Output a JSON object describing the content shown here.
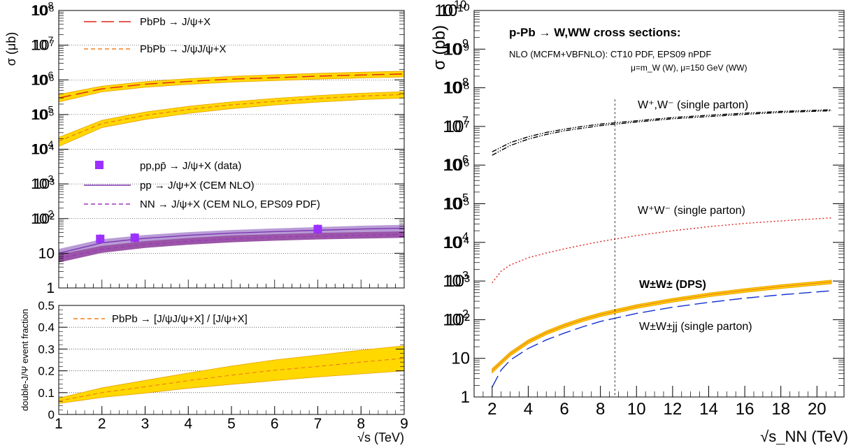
{
  "chart_data": [
    {
      "type": "line",
      "panel": "left-top",
      "ylabel": "σ (μb)",
      "yscale": "log",
      "xlim": [
        1,
        9
      ],
      "ylim": [
        1,
        100000000
      ],
      "ytick_labels": [
        "1",
        "10",
        "10²",
        "10³",
        "10⁴",
        "10⁵",
        "10⁶",
        "10⁷",
        "10⁸"
      ],
      "legend": [
        "PbPb → J/ψ+X",
        "PbPb → J/ψJ/ψ+X",
        "pp,pp̄ → J/ψ+X (data)",
        "pp → J/ψ+X (CEM NLO)",
        "NN → J/ψ+X (CEM NLO, EPS09 PDF)"
      ],
      "series": [
        {
          "name": "PbPb → J/ψ+X",
          "style": "long-dash",
          "color": "#e0221c",
          "band_color": "#ffd800",
          "x": [
            1,
            2,
            3,
            4,
            5,
            6,
            7,
            8,
            9
          ],
          "y": [
            300000,
            550000,
            750000,
            900000,
            1050000,
            1150000,
            1280000,
            1380000,
            1480000
          ],
          "band_low": [
            230000,
            450000,
            610000,
            740000,
            860000,
            950000,
            1050000,
            1130000,
            1210000
          ],
          "band_high": [
            380000,
            660000,
            890000,
            1080000,
            1260000,
            1400000,
            1540000,
            1660000,
            1780000
          ]
        },
        {
          "name": "PbPb → J/ψJ/ψ+X",
          "style": "dash",
          "color": "#f08020",
          "band_color": "#ffd800",
          "x": [
            1,
            2,
            3,
            4,
            5,
            6,
            7,
            8,
            9
          ],
          "y": [
            17000,
            55000,
            95000,
            140000,
            190000,
            240000,
            290000,
            340000,
            380000
          ],
          "band_low": [
            12000,
            42000,
            72000,
            108000,
            148000,
            188000,
            228000,
            268000,
            300000
          ],
          "band_high": [
            22000,
            68000,
            118000,
            172000,
            232000,
            292000,
            352000,
            412000,
            460000
          ]
        },
        {
          "name": "pp → J/ψ+X (CEM NLO)",
          "style": "solid",
          "color": "#7f35b2",
          "band_color": "#b89cd6",
          "x": [
            1,
            2,
            3,
            4,
            5,
            6,
            7,
            8,
            9
          ],
          "y": [
            10,
            20,
            27,
            33,
            38,
            42,
            46,
            50,
            53
          ],
          "band_low": [
            8,
            16,
            22,
            27,
            31,
            34,
            37,
            40,
            43
          ],
          "band_high": [
            13,
            25,
            33,
            40,
            46,
            51,
            56,
            61,
            65
          ]
        },
        {
          "name": "NN → J/ψ+X (CEM NLO, EPS09 PDF)",
          "style": "dash",
          "color": "#9a3cb8",
          "band_color": "#9b55a8",
          "x": [
            1,
            2,
            3,
            4,
            5,
            6,
            7,
            8,
            9
          ],
          "y": [
            7,
            13,
            18,
            22,
            26,
            29,
            31,
            33,
            35
          ],
          "band_low": [
            5.5,
            10.5,
            14.5,
            18,
            21,
            23.5,
            25.5,
            27,
            28.5
          ],
          "band_high": [
            9,
            16,
            22,
            27,
            32,
            35,
            38,
            40,
            42
          ]
        },
        {
          "name": "pp,pp̄ → J/ψ+X (data)",
          "style": "marker",
          "color": "#9b30ff",
          "x": [
            1.96,
            2.76,
            7
          ],
          "y": [
            26,
            28,
            50
          ]
        }
      ]
    },
    {
      "type": "line",
      "panel": "left-bottom",
      "xlabel": "√s (TeV)",
      "ylabel": "double-J/Ψ event fraction",
      "xlim": [
        1,
        9
      ],
      "ylim": [
        0,
        0.5
      ],
      "x_tick_labels": [
        "1",
        "2",
        "3",
        "4",
        "5",
        "6",
        "7",
        "8",
        "9"
      ],
      "y_tick_labels": [
        "0",
        "0.1",
        "0.2",
        "0.3",
        "0.4",
        "0.5"
      ],
      "legend": [
        "PbPb → [J/ψJ/ψ+X] / [J/ψ+X]"
      ],
      "series": [
        {
          "name": "PbPb → [J/ψJ/ψ+X] / [J/ψ+X]",
          "style": "dash",
          "color": "#f08020",
          "band_color": "#ffd800",
          "x": [
            1,
            2,
            3,
            4,
            5,
            6,
            7,
            8,
            9
          ],
          "y": [
            0.062,
            0.1,
            0.127,
            0.155,
            0.18,
            0.203,
            0.22,
            0.24,
            0.258
          ],
          "band_low": [
            0.05,
            0.078,
            0.098,
            0.12,
            0.138,
            0.155,
            0.172,
            0.186,
            0.2
          ],
          "band_high": [
            0.075,
            0.122,
            0.156,
            0.19,
            0.222,
            0.25,
            0.272,
            0.295,
            0.315
          ]
        }
      ]
    },
    {
      "type": "line",
      "panel": "right",
      "title": "p-Pb → W,WW cross sections:",
      "subtitle": "NLO (MCFM+VBFNLO): CT10 PDF, EPS09 nPDF",
      "subtitle2": "μ=m_W (W), μ=150 GeV (WW)",
      "xlabel": "√s_NN (TeV)",
      "ylabel": "σ (pb)",
      "yscale": "log",
      "xlim": [
        1,
        21.5
      ],
      "ylim": [
        1,
        10000000000
      ],
      "x_tick_labels": [
        "2",
        "4",
        "6",
        "8",
        "10",
        "12",
        "14",
        "16",
        "18",
        "20"
      ],
      "ytick_labels": [
        "1",
        "10",
        "10²",
        "10³",
        "10⁴",
        "10⁵",
        "10⁶",
        "10⁷",
        "10⁸",
        "10⁹",
        "10¹⁰"
      ],
      "vline_x": 8.8,
      "annotations": [
        "W⁺,W⁻ (single parton)",
        "W⁺W⁻ (single parton)",
        "W±W± (DPS)",
        "W±W±jj (single parton)"
      ],
      "series": [
        {
          "name": "W⁺,W⁻ (single parton)",
          "style": "dash-dot-dot",
          "color": "#000000",
          "x": [
            2,
            3,
            4,
            5,
            6,
            7,
            8,
            10,
            12,
            14,
            16,
            18,
            20.8
          ],
          "y": [
            2200000,
            3800000,
            5400000,
            7000000,
            8500000,
            10000000,
            11500000,
            14000000,
            17000000,
            19500000,
            22000000,
            24500000,
            27000000
          ]
        },
        {
          "name": "W⁺,W⁻ lower",
          "style": "dash-dot-dot",
          "color": "#000000",
          "x": [
            2,
            3,
            4,
            5,
            6,
            7,
            8,
            10,
            12,
            14,
            16,
            18,
            20.8
          ],
          "y": [
            1800000,
            3200000,
            4700000,
            6200000,
            7700000,
            9000000,
            10500000,
            13000000,
            15800000,
            18000000,
            20500000,
            23000000,
            25500000
          ]
        },
        {
          "name": "W⁺W⁻ (single parton)",
          "style": "dot",
          "color": "#e0221c",
          "x": [
            2,
            2.5,
            3,
            4,
            5,
            6,
            7,
            8,
            10,
            12,
            14,
            16,
            18,
            20.8
          ],
          "y": [
            900,
            1800,
            2600,
            4000,
            5300,
            6800,
            8500,
            10500,
            15000,
            20000,
            25500,
            31000,
            36000,
            43000
          ]
        },
        {
          "name": "W±W± (DPS)",
          "style": "solid",
          "color": "#f08020",
          "band_color": "#ffd800",
          "x": [
            2,
            3,
            4,
            5,
            6,
            7,
            8,
            10,
            12,
            14,
            16,
            18,
            20.8
          ],
          "y": [
            4.8,
            13,
            27,
            46,
            70,
            100,
            135,
            220,
            320,
            440,
            570,
            720,
            950
          ],
          "band_low": [
            4.2,
            11.5,
            24,
            41,
            62,
            89,
            120,
            196,
            285,
            392,
            508,
            642,
            848
          ],
          "band_high": [
            5.4,
            14.5,
            30,
            51,
            78,
            111,
            150,
            244,
            355,
            488,
            632,
            798,
            1050
          ]
        },
        {
          "name": "W±W±jj (single parton)",
          "style": "long-dash",
          "color": "#1030d0",
          "x": [
            2,
            2.5,
            3,
            4,
            5,
            6,
            7,
            8,
            10,
            12,
            14,
            16,
            18,
            20.8
          ],
          "y": [
            1.8,
            5,
            9,
            18,
            30,
            45,
            65,
            90,
            145,
            210,
            280,
            360,
            440,
            560
          ]
        }
      ]
    }
  ]
}
